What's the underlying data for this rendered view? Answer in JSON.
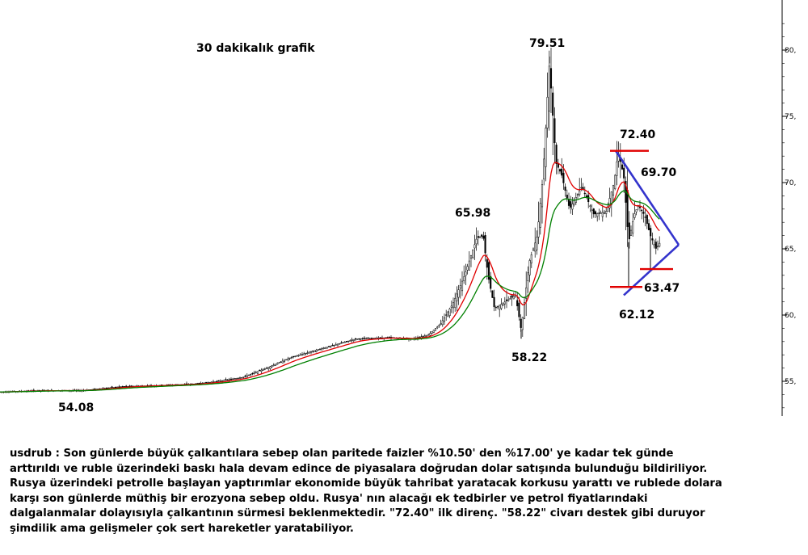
{
  "chart_data": {
    "type": "candlestick",
    "title": "30 dakikalık grafik",
    "y_axis": {
      "ticks": [
        "55,",
        "60,",
        "65,",
        "70,",
        "75,",
        "80,"
      ],
      "range": [
        51.5,
        83
      ]
    },
    "annotations": [
      "79.51",
      "72.40",
      "69.70",
      "65.98",
      "63.47",
      "62.12",
      "58.22",
      "54.08"
    ],
    "anchor_points": [
      {
        "x": 0,
        "close": 54.2
      },
      {
        "x": 50,
        "close": 54.3
      },
      {
        "x": 100,
        "close": 54.3
      },
      {
        "x": 150,
        "close": 54.6
      },
      {
        "x": 200,
        "close": 54.7
      },
      {
        "x": 240,
        "close": 54.8
      },
      {
        "x": 270,
        "close": 55.0
      },
      {
        "x": 300,
        "close": 55.3
      },
      {
        "x": 330,
        "close": 56.0
      },
      {
        "x": 360,
        "close": 56.8
      },
      {
        "x": 400,
        "close": 57.5
      },
      {
        "x": 440,
        "close": 58.2
      },
      {
        "x": 480,
        "close": 58.3
      },
      {
        "x": 510,
        "close": 58.2
      },
      {
        "x": 530,
        "close": 58.5
      },
      {
        "x": 545,
        "close": 59.3
      },
      {
        "x": 560,
        "close": 60.8
      },
      {
        "x": 575,
        "close": 63.0
      },
      {
        "x": 590,
        "close": 65.8
      },
      {
        "x": 598,
        "close": 65.98
      },
      {
        "x": 604,
        "close": 63.0
      },
      {
        "x": 612,
        "close": 60.5
      },
      {
        "x": 625,
        "close": 61.0
      },
      {
        "x": 638,
        "close": 61.5
      },
      {
        "x": 645,
        "close": 58.9
      },
      {
        "x": 655,
        "close": 64.0
      },
      {
        "x": 665,
        "close": 66.0
      },
      {
        "x": 672,
        "close": 70.5
      },
      {
        "x": 680,
        "close": 79.0
      },
      {
        "x": 688,
        "close": 71.5
      },
      {
        "x": 695,
        "close": 70.6
      },
      {
        "x": 705,
        "close": 68.0
      },
      {
        "x": 720,
        "close": 69.7
      },
      {
        "x": 735,
        "close": 67.6
      },
      {
        "x": 750,
        "close": 67.8
      },
      {
        "x": 760,
        "close": 70.0
      },
      {
        "x": 765,
        "close": 72.3
      },
      {
        "x": 772,
        "close": 70.5
      },
      {
        "x": 778,
        "close": 65.5
      },
      {
        "x": 785,
        "close": 67.6
      },
      {
        "x": 790,
        "close": 68.3
      },
      {
        "x": 798,
        "close": 67.5
      },
      {
        "x": 805,
        "close": 66.0
      },
      {
        "x": 812,
        "close": 65.0
      },
      {
        "x": 818,
        "close": 65.6
      }
    ],
    "spike_points": [
      {
        "x": 598,
        "high": 65.98
      },
      {
        "x": 645,
        "low": 58.22
      },
      {
        "x": 680,
        "high": 79.51
      },
      {
        "x": 778,
        "low": 62.12
      },
      {
        "x": 805,
        "low": 63.47
      }
    ],
    "moving_averages": [
      {
        "color": "#e00000"
      },
      {
        "color": "#008000"
      }
    ],
    "drawings": {
      "trendline_color": "#3333cc",
      "level_color": "#e00000",
      "triangle_upper_start": 72.4,
      "triangle_lower_start": 61.5,
      "triangle_apex": 65.3,
      "levels": [
        72.4,
        62.12,
        63.47
      ]
    }
  },
  "description_lines": [
    "usdrub : Son günlerde büyük çalkantılara sebep olan paritede faizler %10.50' den %17.00' ye kadar tek günde",
    "arttırıldı ve ruble üzerindeki baskı hala devam edince de piyasalara doğrudan dolar satışında bulunduğu bildiriliyor.",
    "Rusya üzerindeki petrolle başlayan yaptırımlar ekonomide büyük tahribat yaratacak korkusu yarattı ve rublede dolara",
    "karşı son günlerde müthiş bir erozyona sebep oldu. Rusya' nın alacağı ek tedbirler ve petrol fiyatlarındaki",
    "dalgalanmalar dolayısıyla çalkantının sürmesi beklenmektedir. \"72.40\" ilk direnç. \"58.22\" civarı destek gibi duruyor",
    "şimdilik ama gelişmeler çok sert hareketler yaratabiliyor."
  ]
}
